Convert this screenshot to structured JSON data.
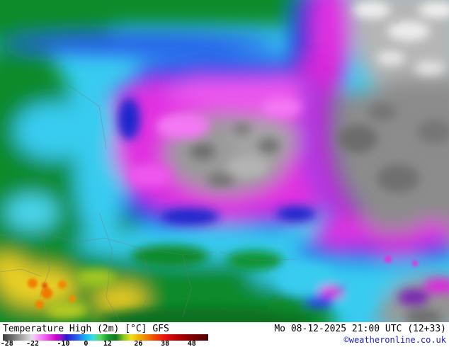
{
  "footer": {
    "title": "Temperature High (2m) [°C] GFS",
    "datetime": "Mo 08-12-2025 21:00 UTC (12+33)",
    "copyright": "©weatheronline.co.uk"
  },
  "scale": {
    "unit": "°C",
    "labels": [
      {
        "text": "-28",
        "pos": 2
      },
      {
        "text": "-22",
        "pos": 14.5
      },
      {
        "text": "-10",
        "pos": 29.5
      },
      {
        "text": "0",
        "pos": 40.5
      },
      {
        "text": "12",
        "pos": 51
      },
      {
        "text": "26",
        "pos": 66
      },
      {
        "text": "38",
        "pos": 79
      },
      {
        "text": "48",
        "pos": 92
      }
    ],
    "gradient": [
      {
        "color": "#3c3c3c",
        "pos": 0
      },
      {
        "color": "#8a8a8a",
        "pos": 7
      },
      {
        "color": "#e0e0e0",
        "pos": 14
      },
      {
        "color": "#f8c0f8",
        "pos": 15.5
      },
      {
        "color": "#ee58ee",
        "pos": 21
      },
      {
        "color": "#cc00cc",
        "pos": 26
      },
      {
        "color": "#8818c8",
        "pos": 28.5
      },
      {
        "color": "#2c18d0",
        "pos": 31
      },
      {
        "color": "#2860f0",
        "pos": 36
      },
      {
        "color": "#18b8f0",
        "pos": 40.5
      },
      {
        "color": "#38e0e0",
        "pos": 44
      },
      {
        "color": "#58d858",
        "pos": 47.5
      },
      {
        "color": "#18a030",
        "pos": 51
      },
      {
        "color": "#127820",
        "pos": 55
      },
      {
        "color": "#90c820",
        "pos": 59
      },
      {
        "color": "#f0e018",
        "pos": 62.5
      },
      {
        "color": "#f0b400",
        "pos": 66
      },
      {
        "color": "#f07800",
        "pos": 70.5
      },
      {
        "color": "#f04000",
        "pos": 74.5
      },
      {
        "color": "#e81010",
        "pos": 79
      },
      {
        "color": "#b80000",
        "pos": 85
      },
      {
        "color": "#800000",
        "pos": 92
      },
      {
        "color": "#4c0000",
        "pos": 100
      }
    ]
  },
  "map": {
    "key_colors": {
      "frigid_gray": "#8c8c8c",
      "very_cold_magenta": "#e030e0",
      "cold_violet": "#7c28b0",
      "cold_blue": "#2842e8",
      "chilly_cyan": "#38ccf0",
      "mild_green": "#0a8a2a",
      "warm_yellow": "#ecd028",
      "hot_orange": "#f08000"
    }
  }
}
